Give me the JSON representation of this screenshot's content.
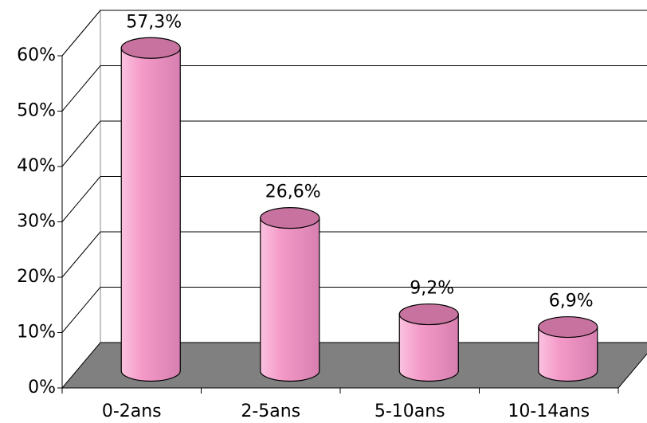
{
  "chart_data": {
    "type": "bar3d",
    "categories": [
      "0-2ans",
      "2-5ans",
      "5-10ans",
      "10-14ans"
    ],
    "values": [
      57.3,
      26.6,
      9.2,
      6.9
    ],
    "value_labels": [
      "57,3%",
      "26,6%",
      "9,2%",
      "6,9%"
    ],
    "color": "#f49ac8",
    "top_color": "#c8739f",
    "floor_color": "#808080",
    "ylim": [
      0,
      60
    ],
    "yticks": [
      {
        "value": 0,
        "label": "0%"
      },
      {
        "value": 10,
        "label": "10%"
      },
      {
        "value": 20,
        "label": "20%"
      },
      {
        "value": 30,
        "label": "30%"
      },
      {
        "value": 40,
        "label": "40%"
      },
      {
        "value": 50,
        "label": "50%"
      },
      {
        "value": 60,
        "label": "60%"
      }
    ],
    "grid": true
  }
}
